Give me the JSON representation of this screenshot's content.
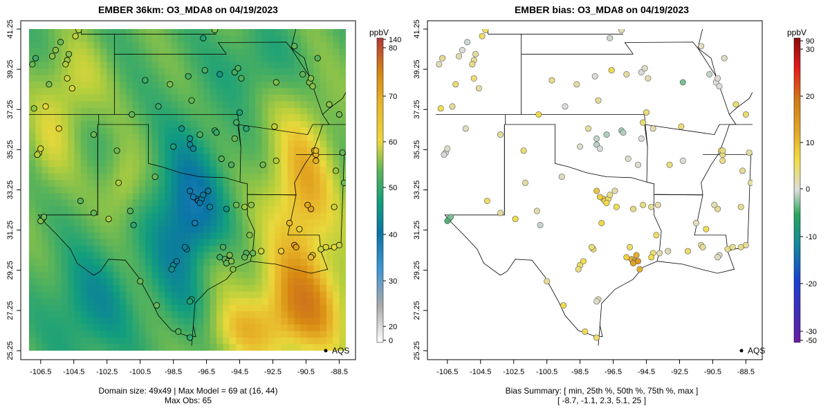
{
  "panels": [
    {
      "title": "EMBER 36km: O3_MDA8 on 04/19/2023",
      "footer": [
        "Domain size: 49x49 | Max Model = 69 at (16, 44)",
        "Max Obs: 65"
      ],
      "legend": "AQS",
      "colorbar": {
        "unit": "ppbV",
        "ticks": [
          "140",
          "80",
          "70",
          "60",
          "50",
          "40",
          "30",
          "20",
          "0"
        ]
      }
    },
    {
      "title": "EMBER bias: O3_MDA8 on 04/19/2023",
      "footer": [
        "Bias Summary: [ min, 25th %, 50th %, 75th %, max ]",
        "[ -8.7,   -1.1,   2.3,   5.1,   25 ]"
      ],
      "legend": "AQS",
      "colorbar": {
        "unit": "ppbV",
        "ticks": [
          "90",
          "30",
          "20",
          "10",
          "0",
          "-10",
          "-20",
          "-30",
          "-50"
        ]
      }
    }
  ],
  "axes": {
    "x_ticks": [
      "-106.5",
      "-104.5",
      "-102.5",
      "-100.5",
      "-98.5",
      "-96.5",
      "-94.5",
      "-92.5",
      "-90.5",
      "-88.5"
    ],
    "y_ticks": [
      "41.25",
      "39.25",
      "37.25",
      "35.25",
      "33.25",
      "31.25",
      "29.25",
      "27.25",
      "25.25"
    ],
    "xlim": [
      -107.2,
      -88.1
    ],
    "ylim": [
      25.25,
      41.25
    ]
  },
  "chart_data": [
    {
      "type": "heatmap",
      "title": "EMBER 36km: O3_MDA8 on 04/19/2023",
      "grid_size": [
        49,
        49
      ],
      "value_range": [
        0,
        140
      ],
      "max_model": 69,
      "max_obs": 65,
      "colorscale": "ppbV"
    },
    {
      "type": "scatter",
      "title": "EMBER bias: O3_MDA8 on 04/19/2023",
      "bias_summary": {
        "min": -8.7,
        "p25": -1.1,
        "median": 2.3,
        "p75": 5.1,
        "max": 25
      },
      "value_range": [
        -50,
        90
      ]
    }
  ],
  "colors": {
    "conc_ramp": [
      "#ffffff",
      "#aaaaaa",
      "#3f97d6",
      "#0a74a6",
      "#129e7e",
      "#58b35a",
      "#b7cf3c",
      "#e9d83c",
      "#e8b72b",
      "#d88a12",
      "#b33a3a"
    ],
    "bias_ramp": [
      "#6a1ea0",
      "#1a3fd0",
      "#14889e",
      "#2ba65a",
      "#dcdcdc",
      "#f0dd48",
      "#e0a42a",
      "#d27814",
      "#e31c1c",
      "#8b0a0a"
    ]
  }
}
